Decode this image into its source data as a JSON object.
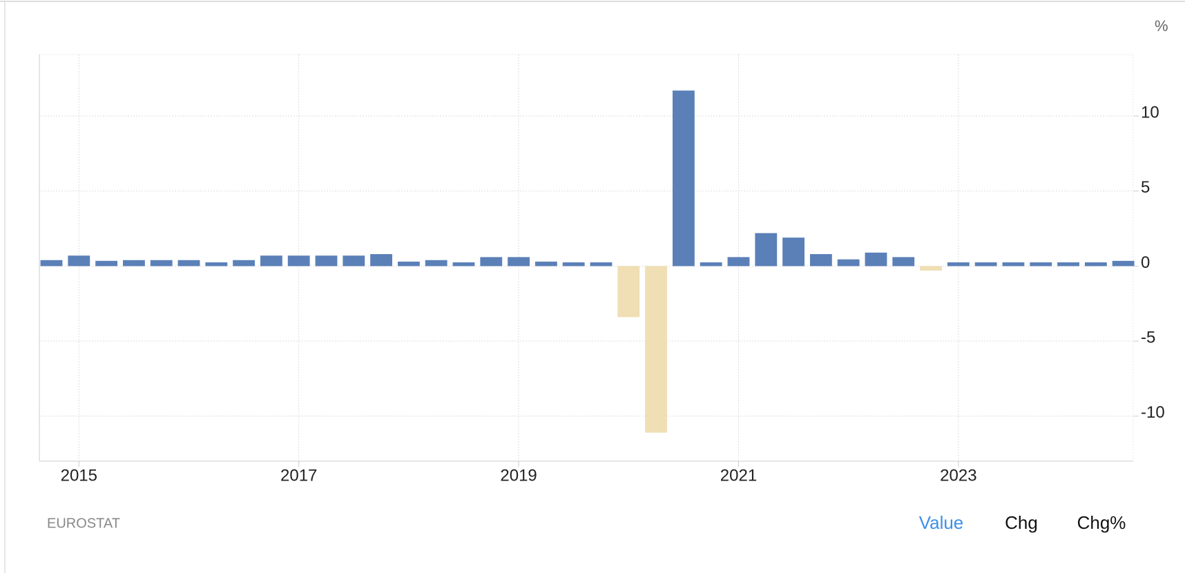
{
  "chart_data": {
    "type": "bar",
    "unit_label": "%",
    "x": [
      2014.75,
      2015,
      2015.25,
      2015.5,
      2015.75,
      2016,
      2016.25,
      2016.5,
      2016.75,
      2017,
      2017.25,
      2017.5,
      2017.75,
      2018,
      2018.25,
      2018.5,
      2018.75,
      2019,
      2019.25,
      2019.5,
      2019.75,
      2020,
      2020.25,
      2020.5,
      2020.75,
      2021,
      2021.25,
      2021.5,
      2021.75,
      2022,
      2022.25,
      2022.5,
      2022.75,
      2023,
      2023.25,
      2023.5,
      2023.75,
      2024,
      2024.25,
      2024.5
    ],
    "values": [
      0.4,
      0.7,
      0.35,
      0.4,
      0.4,
      0.4,
      0.25,
      0.4,
      0.7,
      0.7,
      0.7,
      0.7,
      0.8,
      0.3,
      0.4,
      0.25,
      0.6,
      0.6,
      0.3,
      0.25,
      0.25,
      -3.4,
      -11.1,
      11.7,
      0.25,
      0.6,
      2.2,
      1.9,
      0.8,
      0.45,
      0.9,
      0.6,
      -0.3,
      0.25,
      0.25,
      0.25,
      0.25,
      0.25,
      0.25,
      0.35
    ],
    "color": "#5b80b8",
    "negative_color": "#f0deb4",
    "xlim": [
      2014.64,
      2024.59
    ],
    "xticks": [
      2015,
      2017,
      2019,
      2021,
      2023
    ],
    "ylim": [
      -13,
      14.1
    ],
    "yticks": [
      -10,
      -5,
      0,
      5,
      10
    ],
    "grid": true
  },
  "footer": {
    "source": "EUROSTAT",
    "buttons": [
      "Value",
      "Chg",
      "Chg%"
    ],
    "active": 0
  }
}
